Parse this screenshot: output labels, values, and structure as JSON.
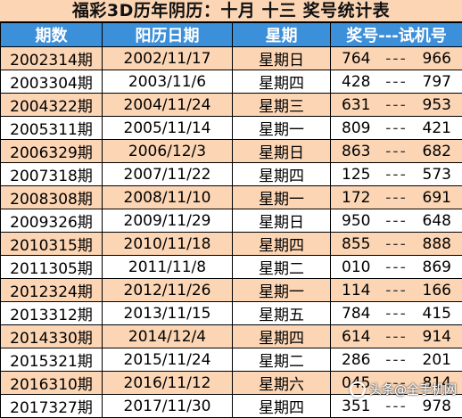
{
  "title": "福彩3D历年阴历：十月  十三  奖号统计表",
  "headers": {
    "period": "期数",
    "date": "阳历日期",
    "weekday": "星期",
    "draw": "奖号---试机号"
  },
  "separator": "---",
  "rows": [
    {
      "period": "2002314期",
      "date": "2002/11/17",
      "weekday": "星期日",
      "award": "764",
      "test": "966"
    },
    {
      "period": "2003304期",
      "date": "2003/11/6",
      "weekday": "星期四",
      "award": "428",
      "test": "797"
    },
    {
      "period": "2004322期",
      "date": "2004/11/24",
      "weekday": "星期三",
      "award": "631",
      "test": "953"
    },
    {
      "period": "2005311期",
      "date": "2005/11/14",
      "weekday": "星期一",
      "award": "809",
      "test": "421"
    },
    {
      "period": "2006329期",
      "date": "2006/12/3",
      "weekday": "星期日",
      "award": "863",
      "test": "682"
    },
    {
      "period": "2007318期",
      "date": "2007/11/22",
      "weekday": "星期四",
      "award": "125",
      "test": "573"
    },
    {
      "period": "2008308期",
      "date": "2008/11/10",
      "weekday": "星期一",
      "award": "172",
      "test": "691"
    },
    {
      "period": "2009326期",
      "date": "2009/11/29",
      "weekday": "星期日",
      "award": "950",
      "test": "648"
    },
    {
      "period": "2010315期",
      "date": "2010/11/18",
      "weekday": "星期四",
      "award": "855",
      "test": "888"
    },
    {
      "period": "2011305期",
      "date": "2011/11/8",
      "weekday": "星期二",
      "award": "010",
      "test": "869"
    },
    {
      "period": "2012324期",
      "date": "2012/11/26",
      "weekday": "星期一",
      "award": "114",
      "test": "166"
    },
    {
      "period": "2013312期",
      "date": "2013/11/15",
      "weekday": "星期五",
      "award": "784",
      "test": "415"
    },
    {
      "period": "2014330期",
      "date": "2014/12/4",
      "weekday": "星期四",
      "award": "614",
      "test": "914"
    },
    {
      "period": "2015321期",
      "date": "2015/11/24",
      "weekday": "星期二",
      "award": "286",
      "test": "201"
    },
    {
      "period": "2016310期",
      "date": "2016/11/12",
      "weekday": "星期六",
      "award": "045",
      "test": "814"
    },
    {
      "period": "2017327期",
      "date": "2017/11/30",
      "weekday": "星期四",
      "award": "351",
      "test": "978"
    }
  ],
  "watermark": {
    "text": "头条@全手机网",
    "icon": "watermark-logo-icon"
  },
  "colors": {
    "header_bg": "#3c8fd9",
    "title_bg": "#fbd5b4",
    "odd_row_bg": "#fbd5b4",
    "even_row_bg": "#ffffff"
  }
}
